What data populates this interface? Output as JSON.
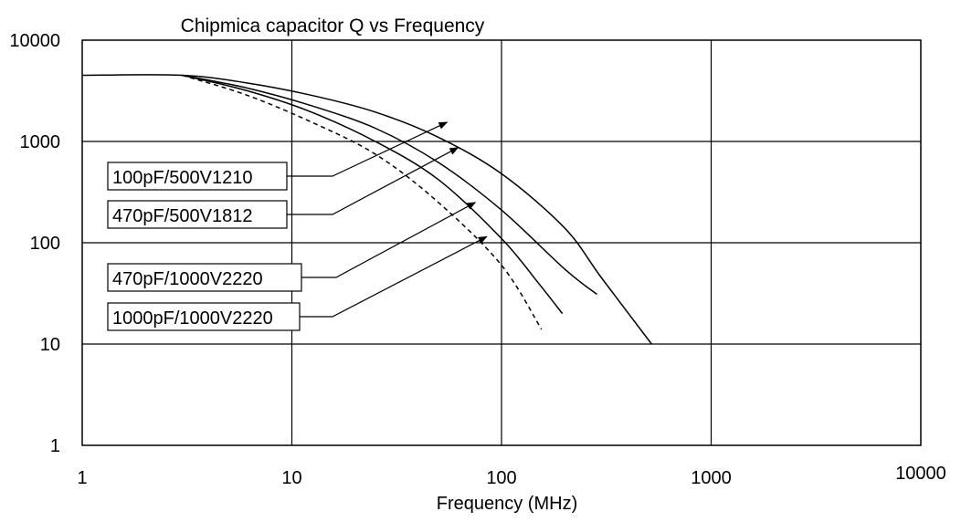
{
  "chart_data": {
    "type": "line",
    "title": "Chipmica capacitor Q vs Frequency",
    "xlabel": "Frequency (MHz)",
    "ylabel": "",
    "x_scale": "log",
    "y_scale": "log",
    "xlim": [
      1,
      10000
    ],
    "ylim": [
      1,
      10000
    ],
    "x_ticks": [
      "1",
      "10",
      "100",
      "1000",
      "10000"
    ],
    "y_ticks": [
      "1",
      "10",
      "100",
      "1000",
      "10000"
    ],
    "grid": true,
    "series": [
      {
        "name": "100pF/500V1210",
        "color": "#000000",
        "dash": "solid",
        "points": [
          [
            1,
            4500
          ],
          [
            3,
            4500
          ],
          [
            6,
            3800
          ],
          [
            12,
            2900
          ],
          [
            25,
            1950
          ],
          [
            50,
            1100
          ],
          [
            100,
            480
          ],
          [
            200,
            140
          ],
          [
            300,
            45
          ],
          [
            520,
            10
          ]
        ]
      },
      {
        "name": "470pF/500V1812",
        "color": "#000000",
        "dash": "solid",
        "points": [
          [
            3,
            4500
          ],
          [
            6,
            3400
          ],
          [
            12,
            2300
          ],
          [
            25,
            1350
          ],
          [
            50,
            620
          ],
          [
            100,
            210
          ],
          [
            200,
            55
          ],
          [
            285,
            31
          ]
        ]
      },
      {
        "name": "470pF/1000V2220",
        "color": "#000000",
        "dash": "solid",
        "points": [
          [
            3,
            4500
          ],
          [
            6,
            3200
          ],
          [
            12,
            2000
          ],
          [
            25,
            1000
          ],
          [
            50,
            420
          ],
          [
            100,
            110
          ],
          [
            150,
            40
          ],
          [
            195,
            20
          ]
        ]
      },
      {
        "name": "1000pF/1000V2220",
        "color": "#000000",
        "dash": "dashed",
        "points": [
          [
            3,
            4500
          ],
          [
            6,
            2900
          ],
          [
            12,
            1600
          ],
          [
            25,
            750
          ],
          [
            50,
            250
          ],
          [
            100,
            60
          ],
          [
            155,
            14
          ]
        ]
      }
    ],
    "annotations": [
      {
        "text": "100pF/500V1210",
        "points_to": [
          55,
          1550
        ]
      },
      {
        "text": "470pF/500V1812",
        "points_to": [
          62,
          870
        ]
      },
      {
        "text": "470pF/1000V2220",
        "points_to": [
          75,
          250
        ]
      },
      {
        "text": "1000pF/1000V2220",
        "points_to": [
          85,
          115
        ]
      }
    ]
  }
}
